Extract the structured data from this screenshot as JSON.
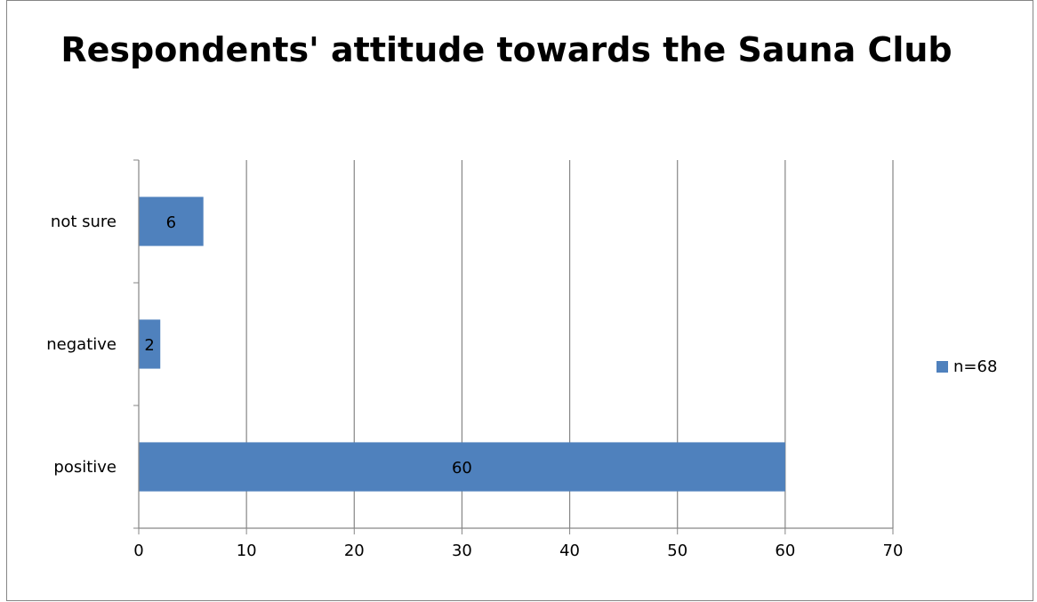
{
  "chart_data": {
    "type": "bar",
    "orientation": "horizontal",
    "title": "Respondents' attitude towards the Sauna Club",
    "categories": [
      "positive",
      "negative",
      "not sure"
    ],
    "series": [
      {
        "name": "n=68",
        "values": [
          60,
          2,
          6
        ],
        "color": "#4F81BD"
      }
    ],
    "data_labels": [
      "60",
      "2",
      "6"
    ],
    "xlim": [
      0,
      70
    ],
    "x_ticks": [
      0,
      10,
      20,
      30,
      40,
      50,
      60,
      70
    ],
    "grid": true,
    "legend_position": "right"
  }
}
